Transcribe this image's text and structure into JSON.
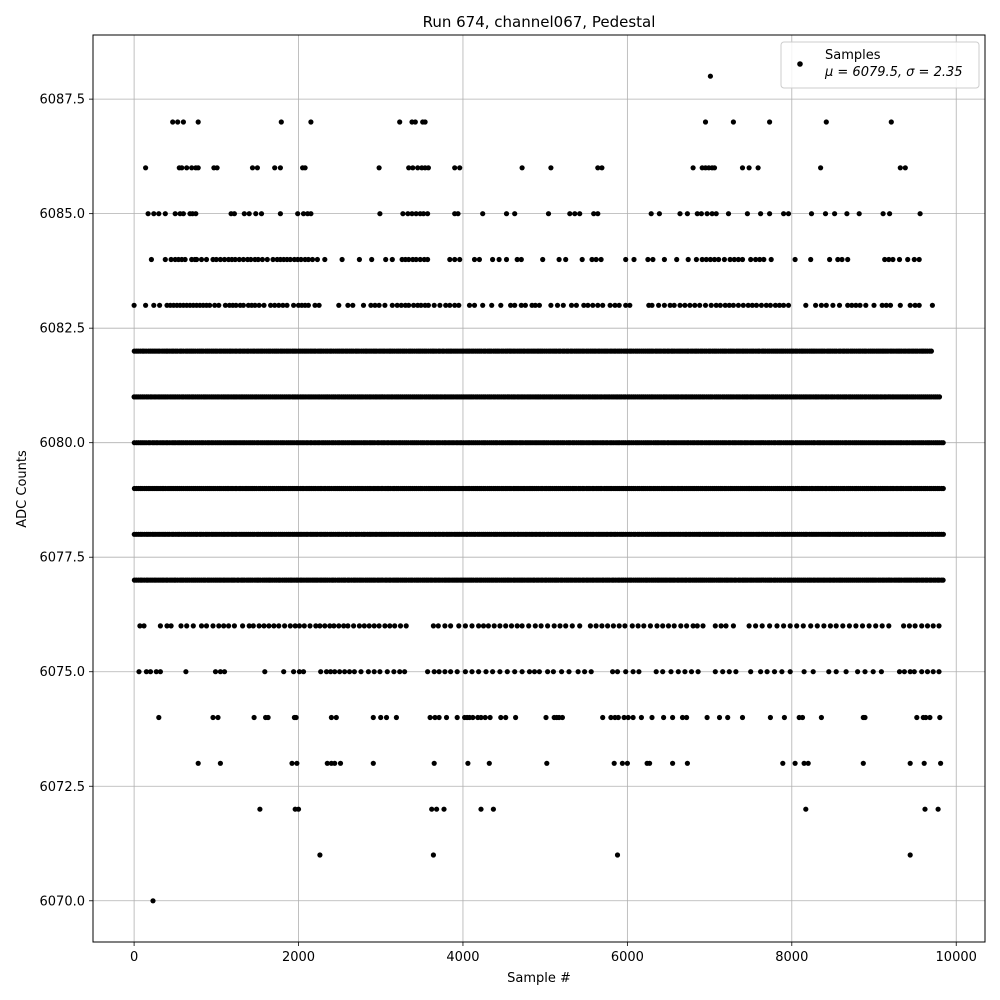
{
  "chart_data": {
    "type": "scatter",
    "title": "Run 674, channel067, Pedestal",
    "xlabel": "Sample #",
    "ylabel": "ADC Counts",
    "xlim": [
      -500,
      10350
    ],
    "ylim": [
      6069.1,
      6088.9
    ],
    "xticks": [
      0,
      2000,
      4000,
      6000,
      8000,
      10000
    ],
    "xtick_labels": [
      "0",
      "2000",
      "4000",
      "6000",
      "8000",
      "10000"
    ],
    "yticks": [
      6070.0,
      6072.5,
      6075.0,
      6077.5,
      6080.0,
      6082.5,
      6085.0,
      6087.5
    ],
    "ytick_labels": [
      "6070.0",
      "6072.5",
      "6075.0",
      "6077.5",
      "6080.0",
      "6082.5",
      "6085.0",
      "6087.5"
    ],
    "grid": true,
    "legend": {
      "placement": "top-right",
      "series_name": "Samples",
      "stats_label": "μ = 6079.5, σ = 2.35"
    },
    "marker_color": "#000000",
    "n_samples": 9850,
    "series": [
      {
        "name": "Samples",
        "x_range": [
          0,
          9850
        ],
        "levels": [
          {
            "y": 6088,
            "x": [
              7010
            ]
          },
          {
            "y": 6087,
            "x": [
              470,
              530,
              600,
              780,
              1790,
              2150,
              3230,
              3380,
              3420,
              3510,
              3540,
              6950,
              7290,
              7730,
              8420,
              9210
            ]
          },
          {
            "y": 6086,
            "x": [
              140,
              550,
              580,
              640,
              700,
              750,
              780,
              970,
              1010,
              1440,
              1500,
              1710,
              1780,
              2050,
              2080,
              2980,
              3340,
              3390,
              3450,
              3500,
              3540,
              3580,
              3900,
              3960,
              4720,
              5070,
              5640,
              5690,
              6800,
              6910,
              6950,
              6990,
              7030,
              7060,
              7400,
              7480,
              7590,
              8350,
              9320,
              9380
            ]
          },
          {
            "y": 6085,
            "x": [
              170,
              240,
              300,
              380,
              500,
              560,
              600,
              680,
              710,
              750,
              1180,
              1220,
              1340,
              1400,
              1480,
              1550,
              1780,
              1990,
              2060,
              2110,
              2150,
              2990,
              3270,
              3330,
              3380,
              3430,
              3480,
              3520,
              3570,
              3900,
              3940,
              4240,
              4530,
              4630,
              5040,
              5300,
              5360,
              5420,
              5590,
              5640,
              6290,
              6390,
              6640,
              6730,
              6850,
              6900,
              6970,
              7030,
              7080,
              7230,
              7460,
              7620,
              7730,
              7900,
              7960,
              8240,
              8410,
              8520,
              8670,
              8820,
              9110,
              9190,
              9560
            ]
          },
          {
            "y": 6084,
            "x": [
              210,
              380,
              450,
              500,
              540,
              580,
              620,
              700,
              740,
              760,
              820,
              880,
              960,
              1000,
              1050,
              1100,
              1150,
              1190,
              1230,
              1280,
              1330,
              1380,
              1420,
              1470,
              1510,
              1560,
              1620,
              1690,
              1740,
              1780,
              1820,
              1860,
              1900,
              1950,
              1990,
              2030,
              2080,
              2120,
              2170,
              2230,
              2320,
              2530,
              2740,
              2890,
              3060,
              3140,
              3260,
              3300,
              3340,
              3390,
              3430,
              3480,
              3530,
              3570,
              3840,
              3900,
              3960,
              4140,
              4200,
              4360,
              4440,
              4530,
              4660,
              4710,
              4970,
              5170,
              5250,
              5450,
              5570,
              5620,
              5680,
              5980,
              6080,
              6250,
              6310,
              6450,
              6600,
              6740,
              6840,
              6910,
              6960,
              7010,
              7060,
              7110,
              7180,
              7250,
              7300,
              7350,
              7400,
              7500,
              7560,
              7610,
              7660,
              7750,
              8040,
              8230,
              8460,
              8560,
              8610,
              8680,
              9130,
              9180,
              9230,
              9310,
              9410,
              9490,
              9550
            ]
          },
          {
            "y": 6083,
            "x": [
              0,
              140,
              240,
              310,
              400,
              440,
              480,
              520,
              560,
              600,
              640,
              680,
              720,
              760,
              800,
              840,
              880,
              920,
              980,
              1030,
              1110,
              1160,
              1200,
              1240,
              1290,
              1330,
              1390,
              1430,
              1470,
              1520,
              1580,
              1660,
              1710,
              1760,
              1810,
              1860,
              1940,
              2000,
              2040,
              2080,
              2120,
              2200,
              2250,
              2490,
              2600,
              2660,
              2790,
              2880,
              2930,
              2980,
              3050,
              3140,
              3200,
              3250,
              3300,
              3340,
              3400,
              3450,
              3490,
              3540,
              3580,
              3650,
              3720,
              3790,
              3840,
              3900,
              3950,
              4080,
              4140,
              4240,
              4350,
              4460,
              4580,
              4630,
              4710,
              4760,
              4840,
              4880,
              4930,
              5070,
              5150,
              5220,
              5320,
              5380,
              5470,
              5520,
              5580,
              5640,
              5700,
              5790,
              5850,
              5900,
              5980,
              6030,
              6260,
              6300,
              6380,
              6450,
              6520,
              6570,
              6640,
              6700,
              6760,
              6820,
              6880,
              6950,
              7020,
              7080,
              7130,
              7190,
              7240,
              7290,
              7350,
              7410,
              7470,
              7520,
              7570,
              7630,
              7690,
              7740,
              7800,
              7850,
              7900,
              7960,
              8170,
              8290,
              8360,
              8420,
              8500,
              8580,
              8680,
              8730,
              8780,
              8830,
              8900,
              9000,
              9100,
              9150,
              9200,
              9320,
              9440,
              9500,
              9550,
              9710
            ]
          },
          {
            "y": 6082,
            "x": [
              0,
              9710
            ],
            "dense": true
          },
          {
            "y": 6081,
            "x": [
              0,
              9810
            ],
            "dense": true
          },
          {
            "y": 6080,
            "x": [
              0,
              9840
            ],
            "dense": true
          },
          {
            "y": 6079,
            "x": [
              0,
              9850
            ],
            "dense": true
          },
          {
            "y": 6078,
            "x": [
              0,
              9850
            ],
            "dense": true
          },
          {
            "y": 6077,
            "x": [
              0,
              9850
            ],
            "dense": true
          },
          {
            "y": 6076,
            "x": [
              70,
              120,
              320,
              400,
              450,
              570,
              640,
              720,
              820,
              880,
              960,
              1030,
              1090,
              1150,
              1220,
              1320,
              1400,
              1450,
              1520,
              1580,
              1640,
              1700,
              1760,
              1830,
              1900,
              1960,
              2010,
              2070,
              2140,
              2210,
              2260,
              2320,
              2380,
              2430,
              2490,
              2550,
              2600,
              2670,
              2740,
              2800,
              2860,
              2920,
              2980,
              3050,
              3110,
              3170,
              3240,
              3310,
              3640,
              3700,
              3780,
              3850,
              3950,
              4030,
              4110,
              4190,
              4250,
              4310,
              4380,
              4450,
              4520,
              4590,
              4660,
              4720,
              4800,
              4880,
              4950,
              5030,
              5110,
              5180,
              5250,
              5330,
              5420,
              5550,
              5620,
              5690,
              5760,
              5830,
              5900,
              5970,
              6060,
              6130,
              6200,
              6280,
              6360,
              6430,
              6500,
              6570,
              6650,
              6720,
              6800,
              6850,
              6920,
              7070,
              7140,
              7200,
              7290,
              7480,
              7560,
              7640,
              7730,
              7820,
              7900,
              7980,
              8060,
              8140,
              8230,
              8310,
              8390,
              8470,
              8540,
              8620,
              8700,
              8780,
              8860,
              8940,
              9020,
              9100,
              9180,
              9360,
              9430,
              9500,
              9580,
              9650,
              9720,
              9790
            ]
          },
          {
            "y": 6075,
            "x": [
              60,
              150,
              200,
              270,
              320,
              630,
              990,
              1050,
              1100,
              1590,
              1820,
              1940,
              2010,
              2060,
              2270,
              2340,
              2390,
              2440,
              2500,
              2560,
              2620,
              2680,
              2760,
              2850,
              2920,
              2990,
              3080,
              3160,
              3230,
              3290,
              3570,
              3650,
              3710,
              3780,
              3850,
              3930,
              4030,
              4110,
              4190,
              4280,
              4360,
              4450,
              4540,
              4630,
              4720,
              4810,
              4870,
              4930,
              5030,
              5100,
              5200,
              5290,
              5400,
              5480,
              5560,
              5820,
              5880,
              5980,
              6070,
              6140,
              6350,
              6430,
              6530,
              6620,
              6700,
              6780,
              6860,
              7070,
              7160,
              7240,
              7320,
              7500,
              7620,
              7700,
              7790,
              7880,
              7980,
              8150,
              8260,
              8450,
              8540,
              8660,
              8800,
              8890,
              8990,
              9090,
              9310,
              9370,
              9440,
              9490,
              9580,
              9650,
              9720,
              9790
            ]
          },
          {
            "y": 6074,
            "x": [
              300,
              960,
              1020,
              1460,
              1600,
              1630,
              1950,
              1970,
              2400,
              2460,
              2910,
              3000,
              3070,
              3190,
              3600,
              3660,
              3710,
              3800,
              3930,
              4020,
              4050,
              4080,
              4120,
              4180,
              4220,
              4270,
              4330,
              4460,
              4520,
              4640,
              5010,
              5110,
              5140,
              5170,
              5210,
              5700,
              5800,
              5850,
              5890,
              5960,
              6010,
              6070,
              6170,
              6300,
              6440,
              6550,
              6670,
              6720,
              6970,
              7120,
              7220,
              7400,
              7740,
              7910,
              8090,
              8130,
              8360,
              8870,
              8890,
              9520,
              9600,
              9630,
              9680,
              9800
            ]
          },
          {
            "y": 6073,
            "x": [
              780,
              1050,
              1920,
              1980,
              2350,
              2400,
              2440,
              2510,
              2910,
              3650,
              4060,
              4320,
              5020,
              5840,
              5940,
              6000,
              6240,
              6270,
              6550,
              6730,
              7890,
              8040,
              8150,
              8200,
              8870,
              9440,
              9610,
              9810
            ]
          },
          {
            "y": 6072,
            "x": [
              1530,
              1960,
              2000,
              3620,
              3680,
              3770,
              4220,
              4370,
              8170,
              9620,
              9780
            ]
          },
          {
            "y": 6071,
            "x": [
              2260,
              3640,
              5880,
              9440
            ]
          },
          {
            "y": 6070,
            "x": [
              230
            ]
          }
        ]
      }
    ]
  }
}
